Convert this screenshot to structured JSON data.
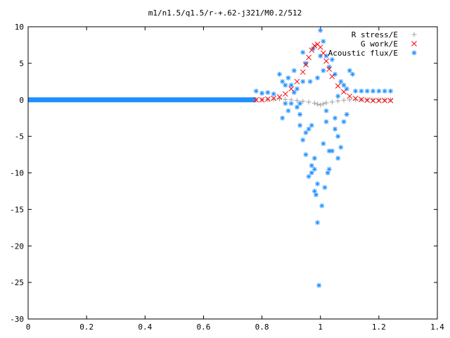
{
  "chart_data": {
    "type": "scatter",
    "title": "m1/n1.5/q1.5/r-+.62-j321/M0.2/512",
    "xlabel": "",
    "ylabel": "",
    "xlim": [
      0,
      1.4
    ],
    "ylim": [
      -30,
      10
    ],
    "x_ticks": [
      "0",
      "0.2",
      "0.4",
      "0.6",
      "0.8",
      "1",
      "1.2",
      "1.4"
    ],
    "y_ticks": [
      "10",
      "5",
      "0",
      "-5",
      "-10",
      "-15",
      "-20",
      "-25",
      "-30"
    ],
    "grid": false,
    "legend_position": "top-right",
    "series": [
      {
        "name": "R stress/E",
        "marker": "+",
        "color": "#a0a0a0",
        "x": [
          0.78,
          0.8,
          0.82,
          0.84,
          0.86,
          0.88,
          0.9,
          0.92,
          0.94,
          0.96,
          0.98,
          0.99,
          1.0,
          1.01,
          1.02,
          1.04,
          1.06,
          1.08,
          1.1,
          1.12,
          1.14,
          1.16,
          1.18,
          1.2,
          1.22,
          1.24
        ],
        "y": [
          0.0,
          0.0,
          0.05,
          0.1,
          0.1,
          0.05,
          0.0,
          -0.1,
          -0.2,
          -0.3,
          -0.45,
          -0.6,
          -0.7,
          -0.55,
          -0.4,
          -0.3,
          -0.15,
          -0.05,
          0.0,
          0.0,
          0.0,
          0.0,
          0.0,
          0.0,
          0.0,
          0.0
        ]
      },
      {
        "name": "G work/E",
        "marker": "x",
        "color": "#ff0000",
        "x": [
          0.78,
          0.8,
          0.82,
          0.84,
          0.86,
          0.88,
          0.9,
          0.92,
          0.94,
          0.95,
          0.96,
          0.97,
          0.98,
          0.99,
          1.0,
          1.01,
          1.02,
          1.03,
          1.04,
          1.06,
          1.08,
          1.1,
          1.12,
          1.14,
          1.16,
          1.18,
          1.2,
          1.22,
          1.24
        ],
        "y": [
          0.0,
          0.0,
          0.1,
          0.2,
          0.4,
          0.8,
          1.5,
          2.5,
          3.8,
          4.8,
          5.8,
          6.8,
          7.4,
          7.6,
          7.2,
          6.4,
          5.3,
          4.2,
          3.2,
          1.9,
          1.1,
          0.5,
          0.2,
          0.05,
          -0.05,
          -0.1,
          -0.1,
          -0.1,
          -0.1
        ]
      },
      {
        "name": "Acoustic flux/E",
        "marker": "*",
        "color": "#1e8fff",
        "x": [
          0.78,
          0.8,
          0.82,
          0.84,
          0.86,
          0.87,
          0.88,
          0.89,
          0.9,
          0.91,
          0.92,
          0.93,
          0.94,
          0.95,
          0.96,
          0.965,
          0.97,
          0.975,
          0.98,
          0.985,
          0.99,
          0.995,
          1.0,
          1.005,
          1.01,
          1.015,
          1.02,
          1.025,
          1.03,
          1.04,
          1.05,
          1.06,
          1.07,
          1.08,
          1.09,
          1.1,
          1.12,
          1.14,
          1.16,
          1.18,
          1.2,
          1.22,
          1.24,
          0.87,
          0.89,
          0.91,
          0.93,
          0.95,
          0.97,
          0.99,
          1.01,
          1.03,
          1.05,
          1.07,
          1.09,
          1.11,
          0.88,
          0.92,
          0.94,
          0.96,
          0.98,
          1.0,
          1.02,
          1.04,
          1.06,
          1.08,
          0.9,
          0.94,
          0.98,
          1.02,
          1.06,
          0.93,
          0.97,
          1.01,
          1.05,
          0.95,
          0.99,
          1.03
        ],
        "y": [
          1.2,
          0.9,
          1.0,
          0.8,
          3.5,
          2.5,
          -0.5,
          3.0,
          2.0,
          4.0,
          1.5,
          -2.0,
          6.5,
          5.0,
          -4.0,
          2.5,
          -10.0,
          7.0,
          -8.0,
          -13.0,
          -16.8,
          -25.4,
          9.5,
          -14.5,
          8.0,
          -12.0,
          6.0,
          -10.0,
          4.5,
          -7.0,
          3.5,
          -5.0,
          2.5,
          -3.0,
          1.5,
          4.0,
          1.2,
          1.2,
          1.2,
          1.2,
          1.2,
          1.2,
          1.2,
          -2.5,
          -1.5,
          1.0,
          -3.5,
          -7.5,
          -9.0,
          -11.5,
          -6.0,
          -9.5,
          -4.0,
          -6.5,
          -2.0,
          3.5,
          2.0,
          -1.0,
          -5.5,
          -10.5,
          -12.5,
          6.0,
          -3.0,
          5.5,
          -8.0,
          2.0,
          -0.5,
          2.5,
          -9.5,
          -1.5,
          0.5,
          -0.5,
          -3.5,
          4.0,
          -2.5,
          -4.5,
          3.0,
          -7.0
        ]
      },
      {
        "name": "",
        "marker": "*",
        "color": "#1e8fff",
        "x": [
          0,
          0.05,
          0.1,
          0.15,
          0.2,
          0.25,
          0.3,
          0.35,
          0.4,
          0.45,
          0.5,
          0.55,
          0.6,
          0.65,
          0.7,
          0.75,
          0.78
        ],
        "y": [
          0,
          0,
          0,
          0,
          0,
          0,
          0,
          0,
          0,
          0,
          0,
          0,
          0,
          0,
          0,
          0,
          0
        ],
        "style": "dense-band"
      }
    ]
  }
}
